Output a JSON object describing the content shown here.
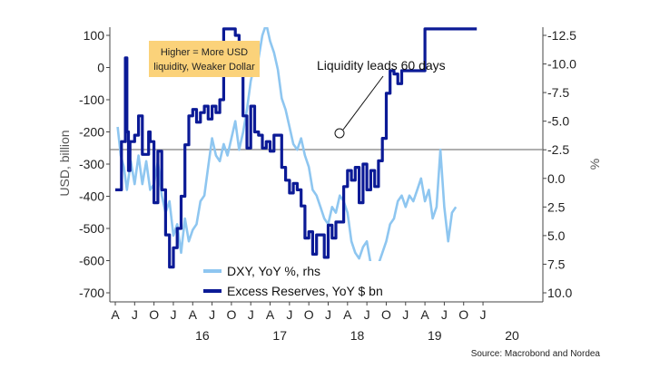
{
  "chart_data": {
    "type": "line",
    "left_axis": {
      "title": "USD, billion",
      "ticks": [
        100,
        0,
        -100,
        -200,
        -300,
        -400,
        -500,
        -600,
        -700
      ],
      "range": [
        -730,
        120
      ]
    },
    "right_axis": {
      "title": "%",
      "ticks": [
        "-12.5",
        "-10.0",
        "-7.5",
        "-5.0",
        "-2.5",
        "0.0",
        "2.5",
        "5.0",
        "7.5",
        "10.0"
      ],
      "tick_values": [
        -12.5,
        -10.0,
        -7.5,
        -5.0,
        -2.5,
        0.0,
        2.5,
        5.0,
        7.5,
        10.0
      ],
      "inverted": true
    },
    "x_axis": {
      "range": [
        2015.25,
        2020.75
      ],
      "month_labels": [
        "A",
        "J",
        "O",
        "J",
        "A",
        "J",
        "O",
        "J",
        "A",
        "J",
        "O",
        "J",
        "A",
        "J",
        "O",
        "J",
        "A",
        "J",
        "O",
        "J"
      ],
      "month_positions": [
        2015.25,
        2015.5,
        2015.75,
        2016.0,
        2016.25,
        2016.5,
        2016.75,
        2017.0,
        2017.25,
        2017.5,
        2017.75,
        2018.0,
        2018.25,
        2018.5,
        2018.75,
        2019.0,
        2019.25,
        2019.5,
        2019.75,
        2020.0
      ],
      "year_labels": [
        "16",
        "17",
        "18",
        "19",
        "20"
      ],
      "year_positions": [
        2016.0,
        2017.0,
        2018.0,
        2019.0,
        2020.0
      ]
    },
    "reference_line": {
      "left_value": -255
    },
    "series": [
      {
        "name": "DXY, YoY %, rhs",
        "axis": "right",
        "color": "#8ec6f0",
        "x": [
          2015.28,
          2015.32,
          2015.36,
          2015.4,
          2015.45,
          2015.5,
          2015.55,
          2015.6,
          2015.65,
          2015.7,
          2015.75,
          2015.8,
          2015.85,
          2015.9,
          2015.95,
          2016.0,
          2016.05,
          2016.1,
          2016.15,
          2016.2,
          2016.25,
          2016.3,
          2016.35,
          2016.4,
          2016.45,
          2016.5,
          2016.55,
          2016.6,
          2016.65,
          2016.7,
          2016.75,
          2016.8,
          2016.85,
          2016.9,
          2016.95,
          2017.0,
          2017.05,
          2017.1,
          2017.15,
          2017.2,
          2017.25,
          2017.3,
          2017.35,
          2017.4,
          2017.45,
          2017.5,
          2017.55,
          2017.6,
          2017.65,
          2017.7,
          2017.75,
          2017.8,
          2017.85,
          2017.9,
          2017.95,
          2018.0,
          2018.05,
          2018.1,
          2018.15,
          2018.2,
          2018.25,
          2018.3,
          2018.35,
          2018.4,
          2018.45,
          2018.5,
          2018.55,
          2018.6,
          2018.65,
          2018.7,
          2018.75,
          2018.8,
          2018.85,
          2018.9,
          2018.95,
          2019.0,
          2019.05,
          2019.1,
          2019.15,
          2019.2,
          2019.25,
          2019.3,
          2019.35,
          2019.4,
          2019.45,
          2019.5,
          2019.55,
          2019.6,
          2019.65
        ],
        "values": [
          -4.5,
          -2.0,
          -1.0,
          1.0,
          -1.5,
          0.5,
          -2.0,
          0.5,
          -1.5,
          1.0,
          0.5,
          -1.5,
          1.5,
          3.0,
          2.0,
          5.0,
          4.0,
          6.5,
          3.5,
          5.5,
          4.5,
          4.0,
          2.0,
          1.5,
          -1.0,
          -3.5,
          -2.0,
          -1.5,
          -3.0,
          -2.0,
          -3.5,
          -5.0,
          -2.5,
          -4.0,
          -6.0,
          -8.5,
          -10.0,
          -10.5,
          -12.5,
          -13.5,
          -12.0,
          -11.0,
          -9.5,
          -7.0,
          -6.0,
          -4.5,
          -3.0,
          -2.5,
          -3.5,
          -2.0,
          -1.0,
          1.0,
          1.5,
          2.5,
          3.5,
          4.0,
          2.5,
          3.0,
          1.5,
          2.0,
          3.0,
          5.5,
          6.5,
          7.0,
          6.0,
          5.5,
          7.5,
          8.5,
          7.5,
          6.5,
          5.5,
          4.0,
          3.5,
          2.0,
          1.5,
          2.5,
          1.5,
          2.0,
          1.0,
          0.0,
          2.0,
          1.0,
          3.5,
          2.5,
          -2.5,
          2.5,
          5.5,
          3.0,
          2.5
        ]
      },
      {
        "name": "Excess Reserves, YoY $ bn",
        "axis": "left",
        "color": "#0b1a96",
        "x": [
          2015.25,
          2015.33,
          2015.38,
          2015.4,
          2015.42,
          2015.44,
          2015.5,
          2015.55,
          2015.6,
          2015.68,
          2015.7,
          2015.75,
          2015.8,
          2015.85,
          2015.9,
          2015.95,
          2016.0,
          2016.05,
          2016.1,
          2016.15,
          2016.2,
          2016.25,
          2016.3,
          2016.35,
          2016.4,
          2016.45,
          2016.5,
          2016.55,
          2016.6,
          2016.65,
          2016.7,
          2016.75,
          2016.8,
          2016.85,
          2016.9,
          2016.95,
          2017.0,
          2017.05,
          2017.1,
          2017.15,
          2017.2,
          2017.25,
          2017.3,
          2017.4,
          2017.45,
          2017.5,
          2017.55,
          2017.6,
          2017.65,
          2017.7,
          2017.75,
          2017.8,
          2017.85,
          2017.95,
          2018.0,
          2018.05,
          2018.1,
          2018.2,
          2018.25,
          2018.3,
          2018.35,
          2018.4,
          2018.45,
          2018.5,
          2018.55,
          2018.6,
          2018.65,
          2018.7,
          2018.75,
          2018.8,
          2018.85,
          2018.9,
          2018.95,
          2019.0,
          2019.05,
          2019.1,
          2019.15,
          2019.2,
          2019.25,
          2019.3,
          2019.35,
          2019.4,
          2019.45,
          2019.5,
          2019.55,
          2019.6,
          2019.65,
          2019.7,
          2019.75,
          2019.8,
          2019.85,
          2019.88,
          2019.92
        ],
        "values": [
          -380,
          -230,
          30,
          -200,
          -320,
          -230,
          -210,
          -150,
          -270,
          -200,
          -230,
          -420,
          -260,
          -380,
          -520,
          -620,
          -560,
          -500,
          -400,
          -240,
          -150,
          -130,
          -170,
          -140,
          -120,
          -160,
          -120,
          -140,
          -100,
          120,
          120,
          120,
          100,
          0,
          -150,
          -250,
          -120,
          -200,
          -210,
          -250,
          -230,
          -260,
          -210,
          -310,
          -350,
          -390,
          -360,
          -380,
          -430,
          -530,
          -510,
          -580,
          -520,
          -590,
          -490,
          -530,
          -480,
          -370,
          -320,
          -350,
          -310,
          -420,
          -300,
          -380,
          -320,
          -370,
          -290,
          -220,
          -80,
          -10,
          -20,
          -50,
          -10,
          -10,
          -10,
          -10,
          -10,
          -10,
          120,
          120,
          120,
          120,
          120,
          120,
          120,
          120,
          120,
          120,
          120,
          120,
          120,
          120,
          120
        ]
      }
    ],
    "legend": [
      "DXY, YoY %, rhs",
      "Excess Reserves, YoY $ bn"
    ],
    "annotations": {
      "box_text": [
        "Higher = More USD",
        "liquidity, Weaker Dollar"
      ],
      "callout": "Liquidity leads 60 days"
    },
    "source": "Source: Macrobond and Nordea"
  },
  "colors": {
    "dxy": "#8ec6f0",
    "reserves": "#0b1a96",
    "box_fill": "#fbd27a",
    "reference_line": "#7f7f7f"
  }
}
